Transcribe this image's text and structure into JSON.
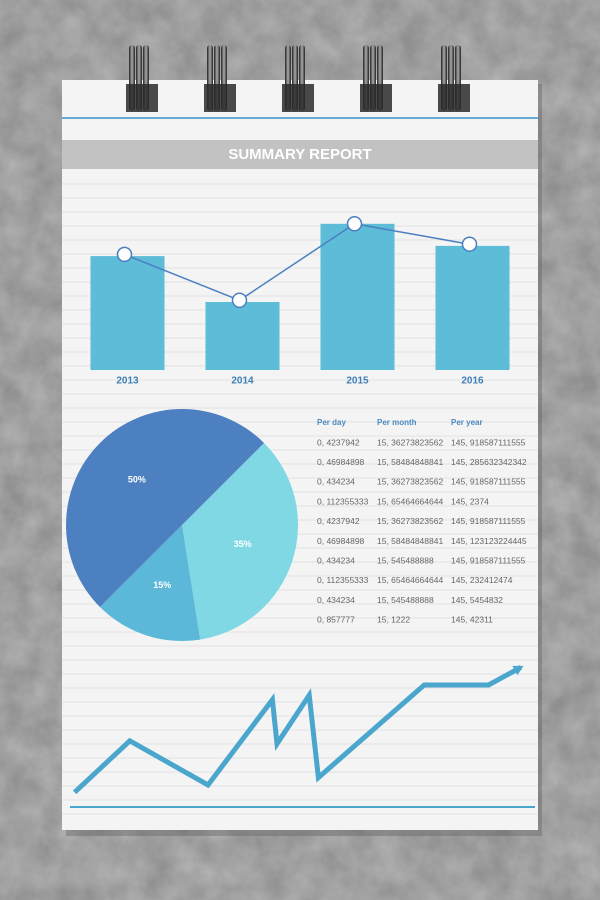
{
  "header": {
    "title": "SUMMARY REPORT"
  },
  "chart_data": [
    {
      "type": "bar",
      "categories": [
        "2013",
        "2014",
        "2015",
        "2016"
      ],
      "values": [
        67,
        40,
        86,
        73
      ],
      "color": "#5dbcd8",
      "ylim": [
        0,
        100
      ],
      "overlay": {
        "type": "line",
        "values": [
          68,
          41,
          86,
          74
        ],
        "color": "#4a7fc0"
      }
    },
    {
      "type": "pie",
      "values": [
        35,
        15,
        50
      ],
      "value_labels": [
        "35%",
        "15%",
        "50%"
      ],
      "colors": [
        "#7fd8e4",
        "#5cb8d8",
        "#4d80c0"
      ]
    },
    {
      "type": "line",
      "x": [
        1,
        13,
        30,
        44,
        45,
        52,
        54,
        77,
        91,
        98
      ],
      "values": [
        10,
        45,
        15,
        73,
        43,
        76,
        20,
        83,
        83,
        95
      ],
      "xlim": [
        0,
        100
      ],
      "ylim": [
        0,
        100
      ],
      "color": "#4aa6cc"
    }
  ],
  "table": {
    "columns": [
      "Per day",
      "Per month",
      "Per year"
    ],
    "rows": [
      [
        "0, 4237942",
        "15, 36273823562",
        "145, 918587111555"
      ],
      [
        "0, 46984898",
        "15, 58484848841",
        "145, 285632342342"
      ],
      [
        "0, 434234",
        "15, 36273823562",
        "145, 918587111555"
      ],
      [
        "0, 112355333",
        "15, 65464664644",
        "145, 2374"
      ],
      [
        "0, 4237942",
        "15, 36273823562",
        "145, 918587111555"
      ],
      [
        "0, 46984898",
        "15, 58484848841",
        "145, 123123224445"
      ],
      [
        "0, 434234",
        "15, 545488888",
        "145, 918587111555"
      ],
      [
        "0, 112355333",
        "15, 65464664644",
        "145, 232412474"
      ],
      [
        "0, 434234",
        "15, 545488888",
        "145, 5454832"
      ],
      [
        "0, 857777",
        "15, 1222",
        "145, 42311"
      ]
    ]
  }
}
